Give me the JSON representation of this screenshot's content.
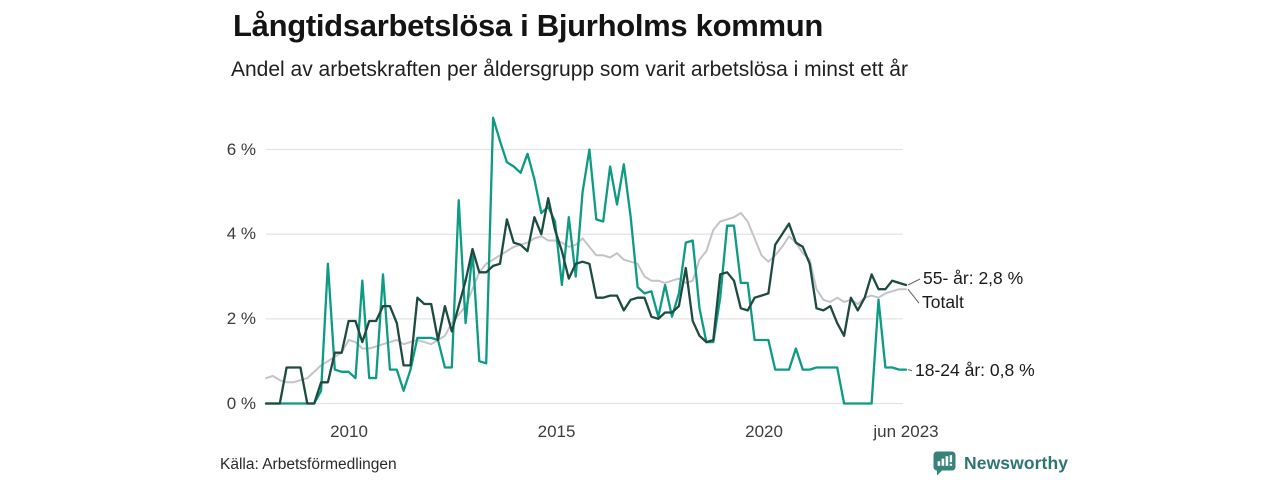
{
  "header": {
    "title": "Långtidsarbetslösa i Bjurholms kommun",
    "subtitle": "Andel av arbetskraften per åldersgrupp som varit arbetslösa i minst ett år"
  },
  "footer": {
    "source": "Källa: Arbetsförmedlingen",
    "brand": "Newsworthy"
  },
  "colors": {
    "series_55": "#1e4b41",
    "series_total": "#c3c3c9",
    "series_18_24": "#0d9b83",
    "gridline": "#e4e4e7",
    "connector": "#6b6b6b",
    "brand_teal": "#35837a"
  },
  "chart_data": {
    "type": "line",
    "title": "Långtidsarbetslösa i Bjurholms kommun",
    "subtitle": "Andel av arbetskraften per åldersgrupp som varit arbetslösa i minst ett år",
    "unit": "% av arbetskraften",
    "x_start": 2008.0,
    "x_end": 2023.42,
    "grid": "horizontal",
    "legend_position": "end-of-line-labels",
    "ylim": [
      0,
      6.9
    ],
    "x_ticks": [
      {
        "x": 2010,
        "label": "2010"
      },
      {
        "x": 2015,
        "label": "2015"
      },
      {
        "x": 2020,
        "label": "2020"
      },
      {
        "x": 2023.42,
        "label": "jun 2023"
      }
    ],
    "y_ticks": [
      {
        "v": 0,
        "label": "0 %"
      },
      {
        "v": 2,
        "label": "2 %"
      },
      {
        "v": 4,
        "label": "4 %"
      },
      {
        "v": 6,
        "label": "6 %"
      }
    ],
    "series": [
      {
        "name": "Totalt",
        "end_label": "Totalt",
        "end_value_text": "Totalt",
        "color": "#c3c3c9",
        "width": 2,
        "values": [
          0.6,
          0.65,
          0.55,
          0.5,
          0.5,
          0.55,
          0.6,
          0.75,
          0.9,
          1.0,
          1.1,
          1.2,
          1.5,
          1.45,
          1.3,
          1.3,
          1.35,
          1.4,
          1.45,
          1.5,
          1.4,
          1.45,
          1.5,
          1.45,
          1.4,
          1.5,
          1.6,
          1.9,
          2.1,
          2.3,
          2.7,
          3.1,
          3.3,
          3.4,
          3.5,
          3.6,
          3.7,
          3.75,
          3.8,
          3.9,
          3.95,
          3.85,
          3.85,
          3.8,
          3.7,
          3.75,
          3.9,
          3.7,
          3.5,
          3.5,
          3.45,
          3.55,
          3.4,
          3.35,
          3.3,
          3.0,
          2.9,
          2.9,
          2.85,
          2.9,
          2.95,
          2.85,
          2.9,
          3.4,
          3.6,
          4.1,
          4.3,
          4.35,
          4.4,
          4.5,
          4.3,
          3.9,
          3.5,
          3.35,
          3.5,
          3.7,
          3.95,
          3.8,
          3.55,
          3.4,
          2.7,
          2.45,
          2.4,
          2.5,
          2.4,
          2.45,
          2.35,
          2.5,
          2.55,
          2.5,
          2.6,
          2.65,
          2.7,
          2.7
        ]
      },
      {
        "name": "18-24 år",
        "end_label": "18-24 år: 0,8 %",
        "end_value_text": "0,8 %",
        "color": "#0d9b83",
        "width": 2.3,
        "values": [
          0,
          0,
          0,
          0,
          0,
          0,
          0,
          0,
          0.3,
          3.3,
          0.8,
          0.75,
          0.75,
          0.6,
          2.9,
          0.6,
          0.6,
          3.05,
          0.8,
          0.8,
          0.3,
          0.8,
          1.55,
          1.55,
          1.55,
          1.5,
          0.85,
          0.85,
          4.8,
          1.9,
          3.6,
          1.0,
          0.95,
          6.75,
          6.2,
          5.7,
          5.6,
          5.45,
          5.9,
          5.3,
          4.5,
          4.65,
          4.3,
          2.8,
          4.4,
          3.0,
          5.0,
          6.0,
          4.35,
          4.3,
          5.6,
          4.7,
          5.65,
          4.4,
          2.75,
          2.6,
          2.65,
          2.05,
          2.8,
          2.05,
          2.6,
          3.8,
          3.85,
          2.25,
          1.45,
          1.45,
          2.5,
          4.2,
          4.2,
          2.85,
          2.85,
          1.5,
          1.5,
          1.5,
          0.8,
          0.8,
          0.8,
          1.3,
          0.8,
          0.8,
          0.85,
          0.85,
          0.85,
          0.85,
          0,
          0,
          0,
          0,
          0,
          2.45,
          0.85,
          0.85,
          0.8,
          0.8
        ]
      },
      {
        "name": "55- år",
        "end_label": "55- år: 2,8 %",
        "end_value_text": "2,8 %",
        "color": "#1e4b41",
        "width": 2.3,
        "values": [
          0,
          0,
          0,
          0.85,
          0.85,
          0.85,
          0,
          0,
          0.5,
          0.5,
          1.2,
          1.2,
          1.95,
          1.95,
          1.45,
          1.95,
          1.95,
          2.3,
          2.3,
          1.9,
          0.9,
          0.9,
          2.5,
          2.35,
          2.35,
          1.5,
          2.3,
          1.7,
          2.3,
          2.9,
          3.65,
          3.1,
          3.1,
          3.25,
          3.3,
          4.35,
          3.8,
          3.75,
          3.6,
          4.4,
          4.0,
          4.85,
          4.1,
          3.6,
          2.95,
          3.3,
          3.35,
          3.3,
          2.5,
          2.5,
          2.55,
          2.55,
          2.2,
          2.45,
          2.5,
          2.5,
          2.05,
          2.0,
          2.15,
          2.15,
          2.3,
          3.2,
          1.95,
          1.6,
          1.45,
          1.5,
          3.05,
          3.1,
          2.9,
          2.25,
          2.2,
          2.5,
          2.55,
          2.6,
          3.75,
          4.0,
          4.25,
          3.8,
          3.7,
          3.3,
          2.25,
          2.2,
          2.3,
          1.9,
          1.6,
          2.5,
          2.2,
          2.5,
          3.05,
          2.7,
          2.7,
          2.9,
          2.85,
          2.8
        ]
      }
    ]
  }
}
